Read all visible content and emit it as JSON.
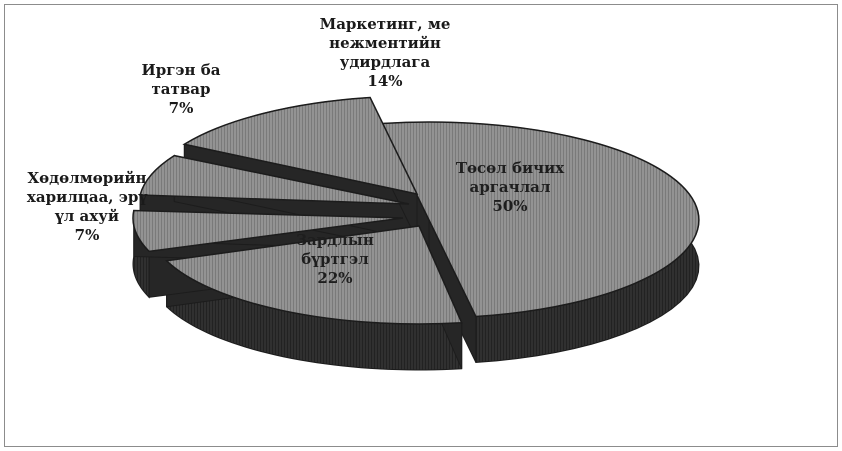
{
  "chart_data": {
    "type": "pie",
    "three_d": true,
    "exploded": true,
    "legend": "none",
    "slices": [
      {
        "name": "Төсөл бичих аргачлал",
        "value": 50,
        "label_lines": [
          "Төсөл бичих",
          "аргачлал",
          "50%"
        ]
      },
      {
        "name": "Зардлын бүртгэл",
        "value": 22,
        "label_lines": [
          "Зардлын",
          "бүртгэл",
          "22%"
        ]
      },
      {
        "name": "Хөдөлмөрийн харилцаа, эрүүл ахуй",
        "value": 7,
        "label_lines": [
          "Хөдөлмөрийн",
          "харилцаа, эрү",
          "үл ахуй",
          "7%"
        ]
      },
      {
        "name": "Иргэн ба татвар",
        "value": 7,
        "label_lines": [
          "Иргэн ба",
          "татвар",
          "7%"
        ]
      },
      {
        "name": "Маркетинг, менежментийн удирдлага",
        "value": 14,
        "label_lines": [
          "Маркетинг, ме",
          "нежментийн",
          "удирдлага",
          "14%"
        ]
      }
    ],
    "colors": {
      "top": "#8f8f8f",
      "side": "#2e2e2e",
      "edge": "#1c1c1c"
    }
  }
}
